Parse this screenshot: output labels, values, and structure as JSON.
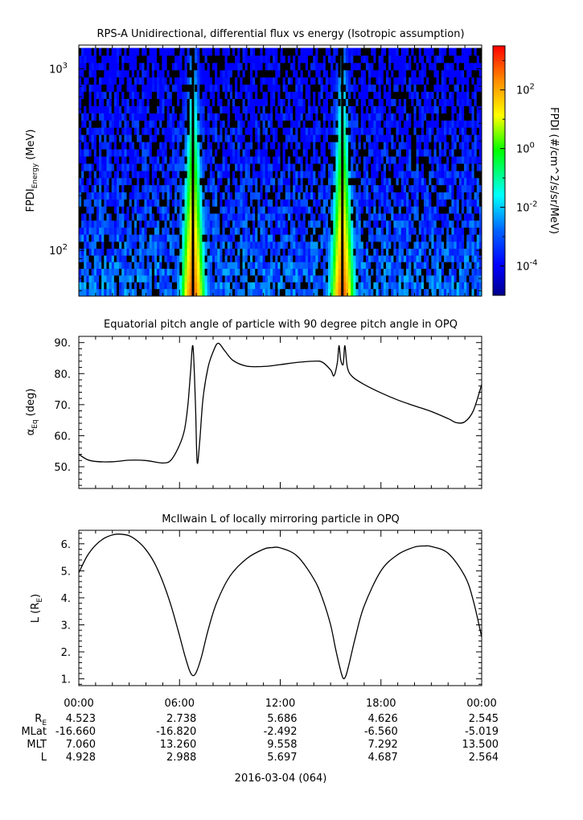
{
  "chart_data": [
    {
      "type": "heatmap",
      "title": "RPS-A Unidirectional, differential flux vs energy (Isotropic assumption)",
      "ylabel_main": "FPDI",
      "ylabel_sub": "Energy",
      "ylabel_unit": "(MeV)",
      "yscale": "log",
      "ylim": [
        56,
        1350
      ],
      "yticks": [
        {
          "v": 100,
          "base": "10",
          "exp": "2"
        },
        {
          "v": 1000,
          "base": "10",
          "exp": "3"
        }
      ],
      "energy_channels": [
        59,
        64,
        70,
        76,
        83,
        90,
        98,
        107,
        117,
        128,
        140,
        153,
        167,
        183,
        200,
        219,
        240,
        262,
        287,
        315,
        345,
        378,
        414,
        454,
        497,
        544,
        596,
        653,
        716,
        784,
        858,
        940,
        1030,
        1130,
        1240
      ],
      "peaks_hours": [
        6.8,
        15.7
      ],
      "colorbar": {
        "label": "FPDI (#/cm^2/s/sr/MeV)",
        "scale": "log",
        "range": [
          -5,
          3.5
        ],
        "ticks": [
          {
            "exp": "2",
            "v": 2
          },
          {
            "exp": "0",
            "v": 0
          },
          {
            "exp": "-2",
            "v": -2
          },
          {
            "exp": "-4",
            "v": -4
          }
        ],
        "colors": [
          "#00008c",
          "#0000ff",
          "#0064ff",
          "#00ffff",
          "#00ff00",
          "#ffff00",
          "#ff8c00",
          "#ff0000"
        ]
      }
    },
    {
      "type": "line",
      "title": "Equatorial pitch angle of particle with 90 degree pitch angle in OPQ",
      "ylabel_main": "α",
      "ylabel_sub": "Eq",
      "ylabel_unit": "(deg)",
      "ylim": [
        43,
        92
      ],
      "yticks": [
        "50.",
        "60.",
        "70.",
        "80.",
        "90."
      ],
      "ytick_values": [
        50,
        60,
        70,
        80,
        90
      ],
      "x_hours": [
        0,
        0.5,
        1,
        2,
        3,
        4,
        5,
        5.5,
        6,
        6.3,
        6.5,
        6.65,
        6.8,
        6.95,
        7.05,
        7.2,
        7.4,
        7.7,
        8.0,
        8.3,
        8.7,
        9.2,
        10,
        11,
        12,
        13,
        14,
        14.5,
        15.0,
        15.2,
        15.4,
        15.5,
        15.6,
        15.75,
        15.85,
        16.0,
        16.3,
        17,
        18,
        19,
        20,
        21,
        22,
        22.5,
        23,
        23.5,
        24
      ],
      "y_values": [
        54,
        52.3,
        51.7,
        51.6,
        52.1,
        52.0,
        51.2,
        52.2,
        57,
        62,
        70,
        80,
        88.8,
        70,
        51.5,
        58,
        72,
        82,
        87,
        89.8,
        87.3,
        84.2,
        82.4,
        82.3,
        82.9,
        83.6,
        84.0,
        83.7,
        81.2,
        79.3,
        83.5,
        89,
        84.5,
        83.0,
        89,
        82,
        79,
        76.5,
        73.8,
        71.5,
        69.6,
        67.8,
        65.5,
        64.2,
        64.5,
        68,
        76.5
      ]
    },
    {
      "type": "line",
      "title": "McIlwain L of locally mirroring particle in OPQ",
      "ylabel_main": "L (R",
      "ylabel_sub": "E",
      "ylabel_unit": ")",
      "ylim": [
        0.75,
        6.5
      ],
      "yticks": [
        "1.",
        "2.",
        "3.",
        "4.",
        "5.",
        "6."
      ],
      "ytick_values": [
        1,
        2,
        3,
        4,
        5,
        6
      ],
      "x_hours": [
        0,
        0.5,
        1,
        1.5,
        2,
        2.4,
        3,
        3.5,
        4,
        4.5,
        5,
        5.5,
        6,
        6.3,
        6.6,
        6.8,
        7.0,
        7.3,
        7.7,
        8.2,
        9,
        10,
        11,
        11.5,
        12,
        13,
        14,
        14.5,
        15,
        15.3,
        15.6,
        15.75,
        15.9,
        16.1,
        16.5,
        17,
        18,
        19,
        20,
        20.6,
        21,
        22,
        23,
        23.5,
        24
      ],
      "y_values": [
        4.93,
        5.55,
        5.95,
        6.2,
        6.33,
        6.36,
        6.3,
        6.1,
        5.78,
        5.3,
        4.6,
        3.7,
        2.6,
        1.9,
        1.3,
        1.12,
        1.25,
        1.8,
        2.8,
        3.8,
        4.8,
        5.45,
        5.8,
        5.86,
        5.85,
        5.55,
        4.7,
        4.0,
        3.0,
        2.1,
        1.3,
        1.02,
        1.1,
        1.55,
        2.6,
        3.7,
        5.0,
        5.6,
        5.88,
        5.92,
        5.9,
        5.65,
        4.8,
        3.9,
        2.55
      ]
    }
  ],
  "x_axis": {
    "range_hours": [
      0,
      24
    ],
    "tick_labels": [
      "00:00",
      "06:00",
      "12:00",
      "18:00",
      "00:00"
    ],
    "date_label": "2016-03-04 (064)"
  },
  "ephemeris": {
    "rows": [
      {
        "label_main": "R",
        "label_sub": "E",
        "values": [
          "4.523",
          "2.738",
          "5.686",
          "4.626",
          "2.545"
        ]
      },
      {
        "label_main": "MLat",
        "label_sub": "",
        "values": [
          "-16.660",
          "-16.820",
          "-2.492",
          "-6.560",
          "-5.019"
        ]
      },
      {
        "label_main": "MLT",
        "label_sub": "",
        "values": [
          "7.060",
          "13.260",
          "9.558",
          "7.292",
          "13.500"
        ]
      },
      {
        "label_main": "L",
        "label_sub": "",
        "values": [
          "4.928",
          "2.988",
          "5.697",
          "4.687",
          "2.564"
        ]
      }
    ]
  }
}
